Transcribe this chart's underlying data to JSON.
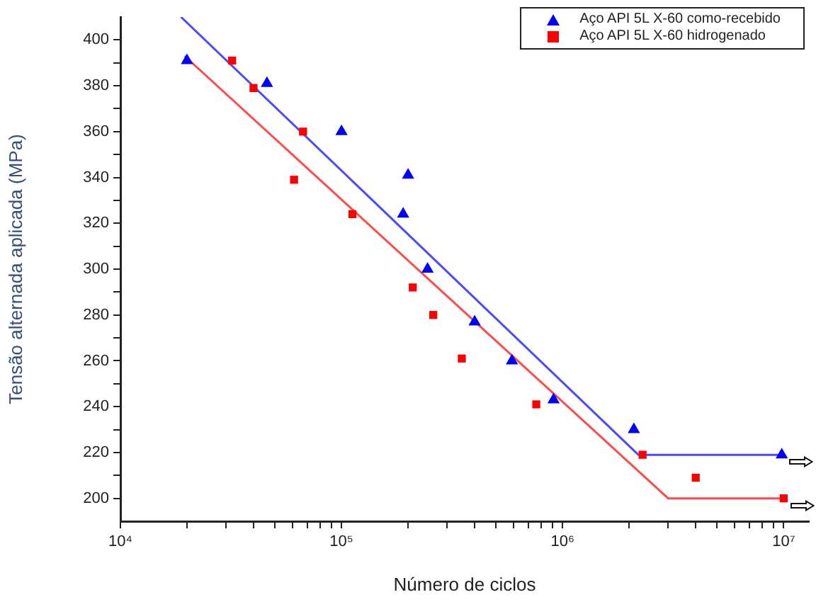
{
  "chart_data": {
    "type": "scatter",
    "xlabel": "Número de ciclos",
    "ylabel": "Tensão alternada aplicada (MPa)",
    "log": "x",
    "xlim": [
      10000,
      13000000
    ],
    "ylim": [
      190,
      410
    ],
    "xticks": [
      {
        "value": 10000,
        "label": "10⁴"
      },
      {
        "value": 20000,
        "label": null
      },
      {
        "value": 30000,
        "label": null
      },
      {
        "value": 40000,
        "label": null
      },
      {
        "value": 50000,
        "label": null
      },
      {
        "value": 60000,
        "label": null
      },
      {
        "value": 70000,
        "label": null
      },
      {
        "value": 80000,
        "label": null
      },
      {
        "value": 90000,
        "label": null
      },
      {
        "value": 100000,
        "label": "10⁵"
      },
      {
        "value": 200000,
        "label": null
      },
      {
        "value": 300000,
        "label": null
      },
      {
        "value": 400000,
        "label": null
      },
      {
        "value": 500000,
        "label": null
      },
      {
        "value": 600000,
        "label": null
      },
      {
        "value": 700000,
        "label": null
      },
      {
        "value": 800000,
        "label": null
      },
      {
        "value": 900000,
        "label": null
      },
      {
        "value": 1000000,
        "label": "10⁶"
      },
      {
        "value": 2000000,
        "label": null
      },
      {
        "value": 3000000,
        "label": null
      },
      {
        "value": 4000000,
        "label": null
      },
      {
        "value": 5000000,
        "label": null
      },
      {
        "value": 6000000,
        "label": null
      },
      {
        "value": 7000000,
        "label": null
      },
      {
        "value": 8000000,
        "label": null
      },
      {
        "value": 9000000,
        "label": null
      },
      {
        "value": 10000000,
        "label": "10⁷"
      }
    ],
    "yticks": [
      200,
      {
        "value": 210,
        "label": null
      },
      220,
      {
        "value": 230,
        "label": null
      },
      240,
      {
        "value": 250,
        "label": null
      },
      260,
      {
        "value": 270,
        "label": null
      },
      280,
      {
        "value": 290,
        "label": null
      },
      300,
      {
        "value": 310,
        "label": null
      },
      320,
      {
        "value": 330,
        "label": null
      },
      340,
      {
        "value": 350,
        "label": null
      },
      360,
      {
        "value": 370,
        "label": null
      },
      380,
      {
        "value": 390,
        "label": null
      },
      400
    ],
    "grid": false,
    "legend": "top right",
    "series": [
      {
        "name": "Aço API 5L X-60 como-recebido",
        "color": "#0000ff",
        "marker": "triangle",
        "x": [
          20000,
          46000,
          100000,
          200000,
          190000,
          245000,
          400000,
          590000,
          910000,
          2100000,
          9800000
        ],
        "values": [
          391,
          381,
          360,
          341,
          324,
          300,
          277,
          260,
          243,
          230,
          219
        ]
      },
      {
        "name": "Aço API 5L X-60 hidrogenado",
        "color": "#ff0000",
        "marker": "square",
        "x": [
          32000,
          40000,
          67000,
          61000,
          112000,
          210000,
          260000,
          350000,
          760000,
          2300000,
          4000000,
          10000000
        ],
        "values": [
          391,
          379,
          360,
          339,
          324,
          292,
          280,
          261,
          241,
          219,
          209,
          200
        ]
      },
      {
        "type": "line",
        "color": "#4a4aff",
        "marker": "none",
        "x": [
          18800,
          2200000,
          10000000
        ],
        "values": [
          410,
          219,
          219
        ]
      },
      {
        "type": "line",
        "color": "#ff4a4a",
        "marker": "none",
        "x": [
          19500,
          3000000,
          10000000
        ],
        "values": [
          393,
          200,
          200
        ]
      }
    ]
  }
}
